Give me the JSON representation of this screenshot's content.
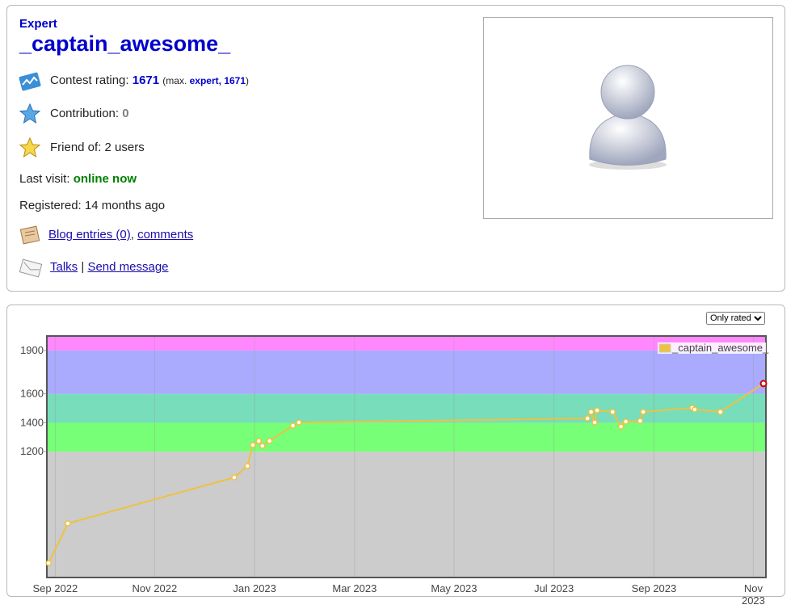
{
  "profile": {
    "rank": "Expert",
    "handle": "_captain_awesome_",
    "rating": {
      "label": "Contest rating:",
      "value": "1671",
      "max_open": "(max.",
      "max_rank": "expert,",
      "max_value": "1671",
      "max_close": ")"
    },
    "contribution": {
      "label": "Contribution:",
      "value": "0"
    },
    "friends": "Friend of: 2 users",
    "last_visit": {
      "label": "Last visit:",
      "value": "online now"
    },
    "registered": "Registered: 14 months ago",
    "blog": {
      "entries": "Blog entries (0)",
      "separator": ",",
      "comments": "comments"
    },
    "messages": {
      "talks": "Talks",
      "separator": "|",
      "send": "Send message"
    }
  },
  "filter": "Only rated",
  "chart_data": {
    "type": "line",
    "series": [
      {
        "name": "_captain_awesome_",
        "color": "#edc240",
        "x": [
          2022.656,
          2022.688,
          2022.966,
          2022.988,
          2022.997,
          2023.007,
          2023.013,
          2023.025,
          2023.064,
          2023.074,
          2023.556,
          2023.562,
          2023.568,
          2023.572,
          2023.598,
          2023.612,
          2023.62,
          2023.644,
          2023.649,
          2023.731,
          2023.735,
          2023.778,
          2023.85
        ],
        "values": [
          430,
          704,
          1022,
          1101,
          1246,
          1274,
          1240,
          1274,
          1380,
          1402,
          1430,
          1475,
          1402,
          1486,
          1475,
          1374,
          1408,
          1413,
          1475,
          1503,
          1492,
          1475,
          1671
        ],
        "last_point_color": "#cc0000"
      }
    ],
    "xlim": [
      2022.653,
      2023.854
    ],
    "xticks": [
      {
        "value": 2022.667,
        "label": "Sep 2022"
      },
      {
        "value": 2022.833,
        "label": "Nov 2022"
      },
      {
        "value": 2023.0,
        "label": "Jan 2023"
      },
      {
        "value": 2023.167,
        "label": "Mar 2023"
      },
      {
        "value": 2023.333,
        "label": "May 2023"
      },
      {
        "value": 2023.5,
        "label": "Jul 2023"
      },
      {
        "value": 2023.667,
        "label": "Sep 2023"
      },
      {
        "value": 2023.833,
        "label": "Nov 2023"
      }
    ],
    "ylim": [
      330,
      2000
    ],
    "yticks": [
      1200,
      1400,
      1600,
      1900
    ],
    "bands": [
      {
        "from": 330,
        "color": "#cccccc"
      },
      {
        "from": 1200,
        "color": "#77ff77"
      },
      {
        "from": 1400,
        "color": "#77ddbb"
      },
      {
        "from": 1600,
        "color": "#aaaaff"
      },
      {
        "from": 1900,
        "color": "#ff88ff"
      }
    ],
    "grid": true,
    "legend": "top-right"
  }
}
